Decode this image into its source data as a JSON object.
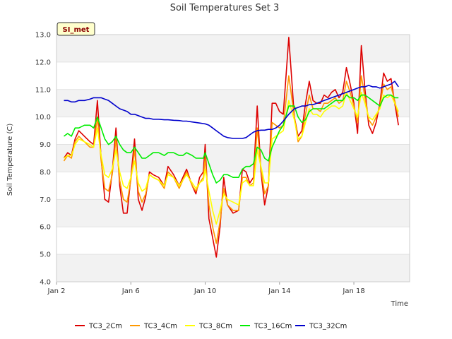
{
  "chart_data": {
    "type": "line",
    "title": "Soil Temperatures Set 3",
    "xlabel": "Time",
    "ylabel": "Soil Temperature (C)",
    "badge": "SI_met",
    "x_unit": "day of January",
    "xlim": [
      2,
      21
    ],
    "ylim": [
      4.0,
      13.0
    ],
    "x_ticks": [
      {
        "value": 2,
        "label": "Jan 2"
      },
      {
        "value": 6,
        "label": "Jan 6"
      },
      {
        "value": 10,
        "label": "Jan 10"
      },
      {
        "value": 14,
        "label": "Jan 14"
      },
      {
        "value": 18,
        "label": "Jan 18"
      }
    ],
    "y_ticks": [
      {
        "value": 4.0,
        "label": "4.0"
      },
      {
        "value": 5.0,
        "label": "5.0"
      },
      {
        "value": 6.0,
        "label": "6.0"
      },
      {
        "value": 7.0,
        "label": "7.0"
      },
      {
        "value": 8.0,
        "label": "8.0"
      },
      {
        "value": 9.0,
        "label": "9.0"
      },
      {
        "value": 10.0,
        "label": "10.0"
      },
      {
        "value": 11.0,
        "label": "11.0"
      },
      {
        "value": 12.0,
        "label": "12.0"
      },
      {
        "value": 13.0,
        "label": "13.0"
      }
    ],
    "grid": true,
    "legend_position": "bottom",
    "series": [
      {
        "name": "TC3_2Cm",
        "color": "#dd0000",
        "x": [
          2.4,
          2.6,
          2.8,
          3.0,
          3.2,
          3.5,
          3.8,
          4.0,
          4.2,
          4.4,
          4.6,
          4.8,
          5.0,
          5.2,
          5.4,
          5.6,
          5.8,
          6.0,
          6.2,
          6.4,
          6.6,
          6.8,
          7.0,
          7.2,
          7.5,
          7.8,
          8.0,
          8.3,
          8.6,
          8.8,
          9.0,
          9.3,
          9.5,
          9.7,
          9.9,
          10.0,
          10.2,
          10.4,
          10.6,
          10.8,
          11.0,
          11.2,
          11.5,
          11.8,
          12.0,
          12.2,
          12.4,
          12.6,
          12.8,
          13.0,
          13.2,
          13.4,
          13.6,
          13.8,
          14.0,
          14.2,
          14.5,
          14.8,
          15.0,
          15.2,
          15.4,
          15.6,
          15.8,
          16.0,
          16.2,
          16.4,
          16.6,
          16.8,
          17.0,
          17.2,
          17.4,
          17.6,
          17.8,
          18.0,
          18.2,
          18.4,
          18.6,
          18.8,
          19.0,
          19.2,
          19.4,
          19.6,
          19.8,
          20.0,
          20.2,
          20.4
        ],
        "y": [
          8.5,
          8.7,
          8.6,
          9.2,
          9.5,
          9.3,
          9.1,
          9.0,
          10.6,
          8.5,
          7.0,
          6.9,
          8.0,
          9.6,
          7.5,
          6.5,
          6.5,
          7.8,
          9.2,
          7.0,
          6.6,
          7.1,
          8.0,
          7.9,
          7.8,
          7.5,
          8.2,
          7.9,
          7.5,
          7.8,
          8.1,
          7.5,
          7.2,
          7.8,
          8.0,
          9.0,
          6.3,
          5.6,
          4.9,
          6.0,
          7.8,
          6.8,
          6.5,
          6.6,
          8.1,
          8.0,
          7.6,
          7.8,
          10.4,
          8.0,
          6.8,
          7.5,
          10.5,
          10.5,
          10.2,
          10.1,
          12.9,
          10.0,
          9.3,
          9.5,
          10.5,
          11.3,
          10.6,
          10.5,
          10.5,
          10.8,
          10.7,
          10.9,
          11.0,
          10.7,
          10.9,
          11.8,
          11.2,
          10.5,
          9.4,
          12.6,
          11.0,
          9.7,
          9.4,
          9.8,
          10.5,
          11.6,
          11.3,
          11.4,
          10.5,
          9.7
        ]
      },
      {
        "name": "TC3_4Cm",
        "color": "#ff9900",
        "x": [
          2.4,
          2.6,
          2.8,
          3.0,
          3.2,
          3.5,
          3.8,
          4.0,
          4.2,
          4.4,
          4.6,
          4.8,
          5.0,
          5.2,
          5.4,
          5.6,
          5.8,
          6.0,
          6.2,
          6.4,
          6.6,
          6.8,
          7.0,
          7.2,
          7.5,
          7.8,
          8.0,
          8.3,
          8.6,
          8.8,
          9.0,
          9.3,
          9.5,
          9.7,
          9.9,
          10.0,
          10.2,
          10.4,
          10.6,
          10.8,
          11.0,
          11.2,
          11.5,
          11.8,
          12.0,
          12.2,
          12.4,
          12.6,
          12.8,
          13.0,
          13.2,
          13.4,
          13.6,
          13.8,
          14.0,
          14.2,
          14.5,
          14.8,
          15.0,
          15.2,
          15.4,
          15.6,
          15.8,
          16.0,
          16.2,
          16.4,
          16.6,
          16.8,
          17.0,
          17.2,
          17.4,
          17.6,
          17.8,
          18.0,
          18.2,
          18.4,
          18.6,
          18.8,
          19.0,
          19.2,
          19.4,
          19.6,
          19.8,
          20.0,
          20.2,
          20.4
        ],
        "y": [
          8.4,
          8.6,
          8.5,
          9.1,
          9.3,
          9.1,
          8.9,
          8.9,
          10.0,
          8.4,
          7.4,
          7.3,
          7.9,
          9.2,
          7.7,
          7.0,
          6.9,
          7.7,
          8.8,
          7.3,
          6.9,
          7.2,
          7.9,
          7.8,
          7.7,
          7.4,
          8.0,
          7.8,
          7.4,
          7.7,
          8.0,
          7.5,
          7.3,
          7.6,
          7.8,
          8.5,
          6.8,
          6.0,
          5.4,
          6.2,
          7.4,
          6.8,
          6.6,
          6.6,
          7.8,
          7.8,
          7.5,
          7.6,
          9.6,
          8.1,
          7.2,
          7.5,
          9.8,
          9.7,
          9.6,
          9.7,
          11.5,
          10.0,
          9.1,
          9.3,
          10.1,
          10.8,
          10.3,
          10.3,
          10.2,
          10.5,
          10.5,
          10.6,
          10.7,
          10.5,
          10.6,
          11.3,
          10.9,
          10.4,
          9.8,
          11.5,
          10.7,
          9.9,
          9.7,
          10.0,
          10.4,
          11.2,
          11.0,
          11.1,
          10.6,
          10.0
        ]
      },
      {
        "name": "TC3_8Cm",
        "color": "#ffff00",
        "x": [
          2.4,
          2.6,
          2.8,
          3.0,
          3.2,
          3.5,
          3.8,
          4.0,
          4.2,
          4.4,
          4.6,
          4.8,
          5.0,
          5.2,
          5.4,
          5.6,
          5.8,
          6.0,
          6.2,
          6.4,
          6.6,
          6.8,
          7.0,
          7.2,
          7.5,
          7.8,
          8.0,
          8.3,
          8.6,
          8.8,
          9.0,
          9.3,
          9.5,
          9.7,
          9.9,
          10.0,
          10.2,
          10.4,
          10.6,
          10.8,
          11.0,
          11.2,
          11.5,
          11.8,
          12.0,
          12.2,
          12.4,
          12.6,
          12.8,
          13.0,
          13.2,
          13.4,
          13.6,
          13.8,
          14.0,
          14.2,
          14.5,
          14.8,
          15.0,
          15.2,
          15.4,
          15.6,
          15.8,
          16.0,
          16.2,
          16.4,
          16.6,
          16.8,
          17.0,
          17.2,
          17.4,
          17.6,
          17.8,
          18.0,
          18.2,
          18.4,
          18.6,
          18.8,
          19.0,
          19.2,
          19.4,
          19.6,
          19.8,
          20.0,
          20.2,
          20.4
        ],
        "y": [
          8.5,
          8.6,
          8.6,
          9.0,
          9.2,
          9.1,
          9.0,
          8.9,
          9.6,
          8.6,
          7.9,
          7.8,
          8.1,
          8.8,
          8.0,
          7.5,
          7.4,
          7.8,
          8.4,
          7.6,
          7.3,
          7.4,
          7.9,
          7.8,
          7.7,
          7.5,
          7.9,
          7.8,
          7.5,
          7.7,
          7.9,
          7.6,
          7.4,
          7.6,
          7.7,
          8.1,
          7.3,
          6.6,
          6.1,
          6.6,
          7.2,
          7.0,
          6.9,
          6.8,
          7.6,
          7.7,
          7.5,
          7.5,
          8.8,
          8.2,
          7.6,
          7.6,
          9.2,
          9.3,
          9.4,
          9.5,
          10.6,
          9.9,
          9.2,
          9.3,
          9.8,
          10.3,
          10.1,
          10.1,
          10.0,
          10.2,
          10.3,
          10.4,
          10.4,
          10.3,
          10.4,
          10.9,
          10.6,
          10.3,
          10.0,
          10.9,
          10.5,
          10.0,
          9.9,
          10.1,
          10.3,
          10.8,
          10.7,
          10.8,
          10.5,
          10.2
        ]
      },
      {
        "name": "TC3_16Cm",
        "color": "#00ee00",
        "x": [
          2.4,
          2.6,
          2.8,
          3.0,
          3.2,
          3.5,
          3.8,
          4.0,
          4.2,
          4.4,
          4.6,
          4.8,
          5.0,
          5.2,
          5.4,
          5.6,
          5.8,
          6.0,
          6.2,
          6.4,
          6.6,
          6.8,
          7.0,
          7.2,
          7.5,
          7.8,
          8.0,
          8.3,
          8.6,
          8.8,
          9.0,
          9.3,
          9.5,
          9.7,
          9.9,
          10.0,
          10.2,
          10.4,
          10.6,
          10.8,
          11.0,
          11.2,
          11.5,
          11.8,
          12.0,
          12.2,
          12.4,
          12.6,
          12.8,
          13.0,
          13.2,
          13.4,
          13.6,
          13.8,
          14.0,
          14.2,
          14.5,
          14.8,
          15.0,
          15.2,
          15.4,
          15.6,
          15.8,
          16.0,
          16.2,
          16.4,
          16.6,
          16.8,
          17.0,
          17.2,
          17.4,
          17.6,
          17.8,
          18.0,
          18.2,
          18.4,
          18.6,
          18.8,
          19.0,
          19.2,
          19.4,
          19.6,
          19.8,
          20.0,
          20.2,
          20.4
        ],
        "y": [
          9.3,
          9.4,
          9.3,
          9.6,
          9.6,
          9.7,
          9.7,
          9.6,
          10.0,
          9.6,
          9.2,
          9.0,
          9.1,
          9.3,
          9.0,
          8.8,
          8.7,
          8.7,
          8.9,
          8.7,
          8.5,
          8.5,
          8.6,
          8.7,
          8.7,
          8.6,
          8.7,
          8.7,
          8.6,
          8.6,
          8.7,
          8.6,
          8.5,
          8.5,
          8.5,
          8.7,
          8.3,
          7.9,
          7.6,
          7.7,
          7.9,
          7.9,
          7.8,
          7.8,
          8.1,
          8.2,
          8.2,
          8.3,
          8.9,
          8.8,
          8.5,
          8.4,
          8.9,
          9.2,
          9.5,
          9.7,
          10.4,
          10.4,
          10.0,
          9.8,
          9.9,
          10.2,
          10.3,
          10.3,
          10.3,
          10.3,
          10.4,
          10.5,
          10.6,
          10.6,
          10.6,
          10.8,
          10.7,
          10.7,
          10.6,
          10.8,
          10.8,
          10.7,
          10.6,
          10.5,
          10.4,
          10.7,
          10.8,
          10.8,
          10.7,
          10.7
        ]
      },
      {
        "name": "TC3_32Cm",
        "color": "#0000cc",
        "x": [
          2.4,
          2.6,
          2.8,
          3.0,
          3.2,
          3.5,
          3.8,
          4.0,
          4.2,
          4.4,
          4.6,
          4.8,
          5.0,
          5.2,
          5.4,
          5.6,
          5.8,
          6.0,
          6.2,
          6.4,
          6.6,
          6.8,
          7.0,
          7.2,
          7.5,
          7.8,
          8.0,
          8.3,
          8.6,
          8.8,
          9.0,
          9.3,
          9.5,
          9.7,
          9.9,
          10.0,
          10.2,
          10.4,
          10.6,
          10.8,
          11.0,
          11.2,
          11.5,
          11.8,
          12.0,
          12.2,
          12.4,
          12.6,
          12.8,
          13.0,
          13.2,
          13.4,
          13.6,
          13.8,
          14.0,
          14.2,
          14.5,
          14.8,
          15.0,
          15.2,
          15.4,
          15.6,
          15.8,
          16.0,
          16.2,
          16.4,
          16.6,
          16.8,
          17.0,
          17.2,
          17.4,
          17.6,
          17.8,
          18.0,
          18.2,
          18.4,
          18.6,
          18.8,
          19.0,
          19.2,
          19.4,
          19.6,
          19.8,
          20.0,
          20.2,
          20.4
        ],
        "y": [
          10.6,
          10.6,
          10.55,
          10.55,
          10.6,
          10.6,
          10.65,
          10.7,
          10.7,
          10.7,
          10.65,
          10.6,
          10.5,
          10.4,
          10.3,
          10.25,
          10.2,
          10.1,
          10.1,
          10.05,
          10.0,
          9.95,
          9.95,
          9.92,
          9.92,
          9.9,
          9.9,
          9.88,
          9.87,
          9.85,
          9.85,
          9.82,
          9.8,
          9.78,
          9.76,
          9.75,
          9.7,
          9.6,
          9.5,
          9.4,
          9.3,
          9.25,
          9.22,
          9.22,
          9.22,
          9.25,
          9.35,
          9.45,
          9.5,
          9.52,
          9.52,
          9.55,
          9.55,
          9.6,
          9.7,
          9.85,
          10.1,
          10.3,
          10.35,
          10.4,
          10.4,
          10.45,
          10.45,
          10.5,
          10.55,
          10.6,
          10.65,
          10.7,
          10.75,
          10.8,
          10.85,
          10.9,
          10.95,
          11.0,
          11.05,
          11.1,
          11.1,
          11.15,
          11.1,
          11.1,
          11.05,
          11.1,
          11.15,
          11.2,
          11.3,
          11.1
        ]
      }
    ]
  }
}
